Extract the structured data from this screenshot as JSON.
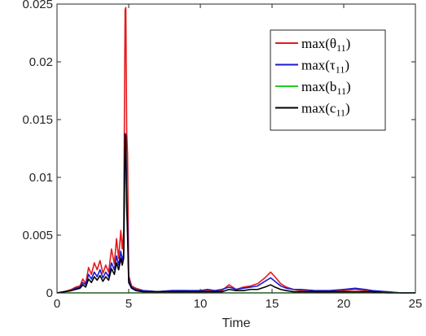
{
  "chart_data": {
    "type": "line",
    "xlabel": "Time",
    "ylabel": "",
    "xlim": [
      0,
      25
    ],
    "ylim": [
      0,
      0.025
    ],
    "xticks": [
      0,
      5,
      10,
      15,
      20,
      25
    ],
    "xtick_labels": [
      "0",
      "5",
      "10",
      "15",
      "20",
      "25"
    ],
    "yticks": [
      0,
      0.005,
      0.01,
      0.015,
      0.02,
      0.025
    ],
    "ytick_labels": [
      "0",
      "0.005",
      "0.01",
      "0.015",
      "0.02",
      "0.025"
    ],
    "grid": false,
    "legend_position": "top-right",
    "series": [
      {
        "name": "max(θ11)",
        "legend_main": "max(θ",
        "legend_sub": "11",
        "legend_close": ")",
        "color": "#e41a1c",
        "points": [
          [
            0,
            0
          ],
          [
            0.5,
            0.0001
          ],
          [
            1,
            0.0003
          ],
          [
            1.3,
            0.0005
          ],
          [
            1.6,
            0.0006
          ],
          [
            1.8,
            0.0012
          ],
          [
            2,
            0.0008
          ],
          [
            2.2,
            0.0022
          ],
          [
            2.4,
            0.0016
          ],
          [
            2.6,
            0.0026
          ],
          [
            2.8,
            0.002
          ],
          [
            3,
            0.0028
          ],
          [
            3.2,
            0.0017
          ],
          [
            3.4,
            0.0024
          ],
          [
            3.6,
            0.0018
          ],
          [
            3.8,
            0.0038
          ],
          [
            4,
            0.0025
          ],
          [
            4.15,
            0.0047
          ],
          [
            4.3,
            0.003
          ],
          [
            4.45,
            0.0054
          ],
          [
            4.55,
            0.0038
          ],
          [
            4.65,
            0.0053
          ],
          [
            4.75,
            0.0245
          ],
          [
            4.8,
            0.0247
          ],
          [
            4.86,
            0.014
          ],
          [
            4.92,
            0.012
          ],
          [
            5,
            0.0015
          ],
          [
            5.2,
            0.0006
          ],
          [
            5.5,
            0.0004
          ],
          [
            6,
            0.0002
          ],
          [
            7,
            0.0001
          ],
          [
            8,
            0.0002
          ],
          [
            9,
            0.0002
          ],
          [
            10,
            0.0001
          ],
          [
            10.5,
            0.0002
          ],
          [
            11,
            0.0001
          ],
          [
            11.5,
            0.0002
          ],
          [
            12,
            0.0007
          ],
          [
            12.5,
            0.0003
          ],
          [
            13,
            0.0005
          ],
          [
            13.5,
            0.0006
          ],
          [
            14,
            0.0008
          ],
          [
            14.5,
            0.0013
          ],
          [
            14.9,
            0.0018
          ],
          [
            15.2,
            0.0014
          ],
          [
            15.6,
            0.0008
          ],
          [
            16,
            0.0005
          ],
          [
            16.5,
            0.0003
          ],
          [
            17,
            0.0002
          ],
          [
            18,
            0.0001
          ],
          [
            19,
            0.0001
          ],
          [
            20,
            0.0002
          ],
          [
            20.8,
            0.0003
          ],
          [
            21.5,
            0.0002
          ],
          [
            22,
            0.0001
          ],
          [
            23,
            0.0001
          ],
          [
            24,
            0
          ],
          [
            25,
            0
          ]
        ]
      },
      {
        "name": "max(τ11)",
        "legend_main": "max(τ",
        "legend_sub": "11",
        "legend_close": ")",
        "color": "#1a1acc",
        "points": [
          [
            0,
            0
          ],
          [
            0.5,
            0.0001
          ],
          [
            1,
            0.0002
          ],
          [
            1.3,
            0.0004
          ],
          [
            1.6,
            0.0005
          ],
          [
            1.8,
            0.0009
          ],
          [
            2,
            0.0007
          ],
          [
            2.2,
            0.0016
          ],
          [
            2.4,
            0.0012
          ],
          [
            2.6,
            0.0018
          ],
          [
            2.8,
            0.0014
          ],
          [
            3,
            0.002
          ],
          [
            3.2,
            0.0013
          ],
          [
            3.4,
            0.0018
          ],
          [
            3.6,
            0.0014
          ],
          [
            3.8,
            0.0026
          ],
          [
            4,
            0.002
          ],
          [
            4.15,
            0.0032
          ],
          [
            4.3,
            0.0024
          ],
          [
            4.45,
            0.0036
          ],
          [
            4.55,
            0.0028
          ],
          [
            4.65,
            0.0034
          ],
          [
            4.75,
            0.0138
          ],
          [
            4.8,
            0.0136
          ],
          [
            4.86,
            0.008
          ],
          [
            4.92,
            0.006
          ],
          [
            5,
            0.0012
          ],
          [
            5.2,
            0.0005
          ],
          [
            5.5,
            0.0003
          ],
          [
            6,
            0.0002
          ],
          [
            7,
            0.0001
          ],
          [
            8,
            0.0002
          ],
          [
            9,
            0.0002
          ],
          [
            10,
            0.0002
          ],
          [
            10.5,
            0.0003
          ],
          [
            11,
            0.0002
          ],
          [
            11.5,
            0.0003
          ],
          [
            12,
            0.0005
          ],
          [
            12.5,
            0.0003
          ],
          [
            13,
            0.0004
          ],
          [
            13.5,
            0.0005
          ],
          [
            14,
            0.0006
          ],
          [
            14.5,
            0.001
          ],
          [
            14.9,
            0.0013
          ],
          [
            15.2,
            0.001
          ],
          [
            15.6,
            0.0006
          ],
          [
            16,
            0.0004
          ],
          [
            16.5,
            0.0003
          ],
          [
            17,
            0.0003
          ],
          [
            18,
            0.0002
          ],
          [
            19,
            0.0002
          ],
          [
            20,
            0.0003
          ],
          [
            20.8,
            0.0004
          ],
          [
            21.5,
            0.0003
          ],
          [
            22,
            0.0002
          ],
          [
            23,
            0.0001
          ],
          [
            24,
            0
          ],
          [
            25,
            0
          ]
        ]
      },
      {
        "name": "max(b11)",
        "legend_main": "max(b",
        "legend_sub": "11",
        "legend_close": ")",
        "color": "#22cc22",
        "points": [
          [
            0,
            0
          ],
          [
            5,
            0
          ],
          [
            10,
            0
          ],
          [
            15,
            0
          ],
          [
            20,
            0
          ],
          [
            25,
            0
          ]
        ]
      },
      {
        "name": "max(c11)",
        "legend_main": "max(c",
        "legend_sub": "11",
        "legend_close": ")",
        "color": "#000000",
        "points": [
          [
            0,
            0
          ],
          [
            0.5,
            0.0001
          ],
          [
            1,
            0.0002
          ],
          [
            1.3,
            0.0003
          ],
          [
            1.6,
            0.0004
          ],
          [
            1.8,
            0.0007
          ],
          [
            2,
            0.0005
          ],
          [
            2.2,
            0.0012
          ],
          [
            2.4,
            0.0009
          ],
          [
            2.6,
            0.0014
          ],
          [
            2.8,
            0.0011
          ],
          [
            3,
            0.0015
          ],
          [
            3.2,
            0.001
          ],
          [
            3.4,
            0.0014
          ],
          [
            3.6,
            0.0011
          ],
          [
            3.8,
            0.0021
          ],
          [
            4,
            0.0016
          ],
          [
            4.15,
            0.0026
          ],
          [
            4.3,
            0.002
          ],
          [
            4.45,
            0.003
          ],
          [
            4.55,
            0.0024
          ],
          [
            4.65,
            0.003
          ],
          [
            4.75,
            0.0137
          ],
          [
            4.8,
            0.0136
          ],
          [
            4.86,
            0.0075
          ],
          [
            4.92,
            0.005
          ],
          [
            5,
            0.0009
          ],
          [
            5.2,
            0.0004
          ],
          [
            5.5,
            0.0002
          ],
          [
            6,
            0.0001
          ],
          [
            7,
            0.0001
          ],
          [
            8,
            0.0001
          ],
          [
            9,
            0.0001
          ],
          [
            10,
            0.0001
          ],
          [
            10.5,
            0.0001
          ],
          [
            11,
            0.0001
          ],
          [
            11.5,
            0.0001
          ],
          [
            12,
            0.0003
          ],
          [
            12.5,
            0.0002
          ],
          [
            13,
            0.0002
          ],
          [
            13.5,
            0.0003
          ],
          [
            14,
            0.0003
          ],
          [
            14.5,
            0.0005
          ],
          [
            14.9,
            0.0007
          ],
          [
            15.2,
            0.0005
          ],
          [
            15.6,
            0.0003
          ],
          [
            16,
            0.0002
          ],
          [
            16.5,
            0.0001
          ],
          [
            17,
            0.0001
          ],
          [
            18,
            0.0001
          ],
          [
            19,
            0.0001
          ],
          [
            20,
            0.0001
          ],
          [
            20.8,
            0.0001
          ],
          [
            21.5,
            0.0001
          ],
          [
            22,
            0.0001
          ],
          [
            23,
            0
          ],
          [
            24,
            0
          ],
          [
            25,
            0
          ]
        ]
      }
    ]
  }
}
